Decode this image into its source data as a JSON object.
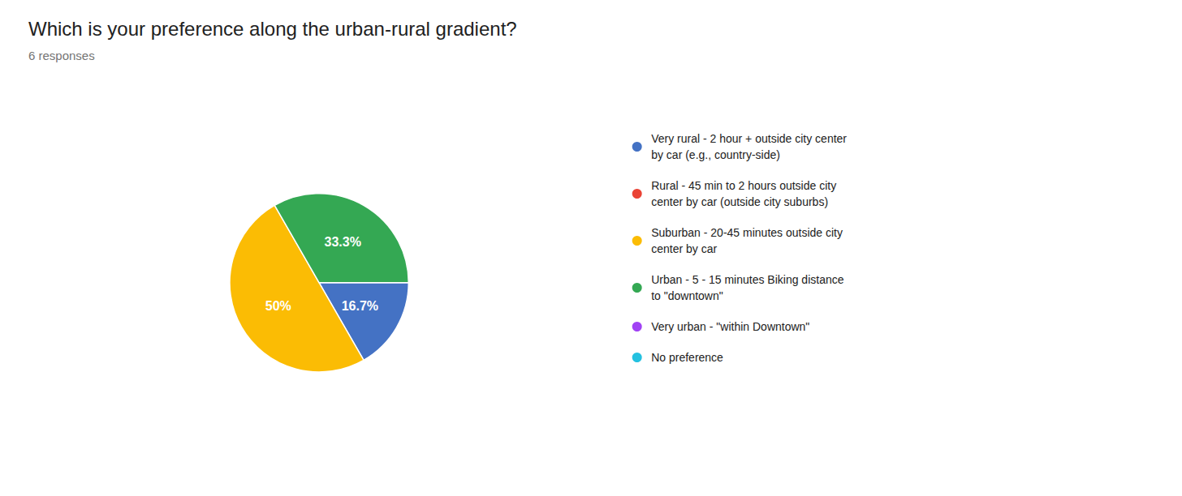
{
  "chart_data": {
    "type": "pie",
    "title": "Which is your preference along the urban-rural gradient?",
    "subtitle": "6 responses",
    "categories": [
      "Very rural - 2 hour + outside city center\nby car (e.g., country-side)",
      "Rural - 45 min to 2 hours outside city\ncenter by car (outside city suburbs)",
      "Suburban - 20-45 minutes outside city\ncenter by car",
      "Urban - 5 - 15 minutes Biking distance\nto \"downtown\"",
      "Very urban - \"within Downtown\"",
      "No preference"
    ],
    "values": [
      16.7,
      null,
      50,
      33.3,
      null,
      null
    ],
    "value_labels": [
      "16.7%",
      null,
      "50%",
      "33.3%",
      null,
      null
    ],
    "colors": [
      "#4472C4",
      "#EA4335",
      "#FBBC04",
      "#34A853",
      "#A142F4",
      "#24C1E0"
    ],
    "data_labels": true,
    "legend": "right"
  }
}
